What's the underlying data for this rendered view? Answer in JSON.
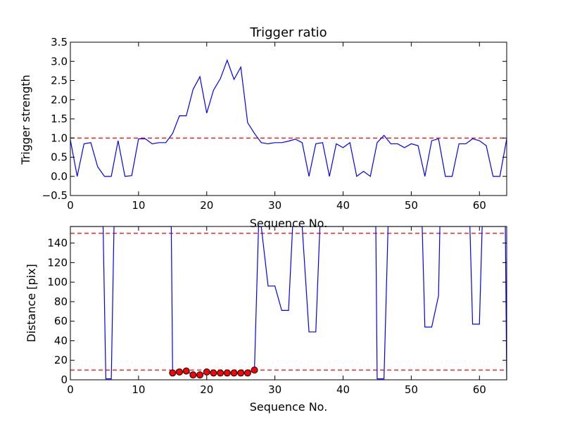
{
  "chart_data": [
    {
      "type": "line",
      "title": "Trigger ratio",
      "xlabel": "Sequence No.",
      "ylabel": "Trigger strength",
      "xlim": [
        0,
        64
      ],
      "ylim": [
        -0.5,
        3.5
      ],
      "xticks": [
        0,
        10,
        20,
        30,
        40,
        50,
        60
      ],
      "yticks": [
        -0.5,
        0.0,
        0.5,
        1.0,
        1.5,
        2.0,
        2.5,
        3.0,
        3.5
      ],
      "tick_labels_x": [
        "0",
        "10",
        "20",
        "30",
        "40",
        "50",
        "60"
      ],
      "tick_labels_y": [
        "−0.5",
        "0.0",
        "0.5",
        "1.0",
        "1.5",
        "2.0",
        "2.5",
        "3.0",
        "3.5"
      ],
      "grid": false,
      "series": [
        {
          "color": "#0000ff",
          "x": [
            0,
            1,
            2,
            3,
            4,
            5,
            6,
            7,
            8,
            9,
            10,
            11,
            12,
            13,
            14,
            15,
            16,
            17,
            18,
            19,
            20,
            21,
            22,
            23,
            24,
            25,
            26,
            27,
            28,
            29,
            30,
            31,
            32,
            33,
            34,
            35,
            36,
            37,
            38,
            39,
            40,
            41,
            42,
            43,
            44,
            45,
            46,
            47,
            48,
            49,
            50,
            51,
            52,
            53,
            54,
            55,
            56,
            57,
            58,
            59,
            60,
            61,
            62,
            63,
            64
          ],
          "y": [
            0.95,
            0.0,
            0.85,
            0.88,
            0.25,
            0.0,
            0.0,
            0.93,
            0.0,
            0.02,
            0.98,
            0.98,
            0.85,
            0.88,
            0.88,
            1.12,
            1.58,
            1.58,
            2.27,
            2.6,
            1.65,
            2.25,
            2.55,
            3.03,
            2.53,
            2.85,
            1.4,
            1.12,
            0.88,
            0.85,
            0.88,
            0.88,
            0.92,
            0.97,
            0.88,
            0.0,
            0.85,
            0.88,
            0.0,
            0.85,
            0.75,
            0.88,
            0.0,
            0.13,
            0.0,
            0.88,
            1.07,
            0.85,
            0.85,
            0.75,
            0.85,
            0.8,
            0.0,
            0.93,
            0.98,
            0.0,
            0.0,
            0.85,
            0.85,
            0.98,
            0.93,
            0.8,
            0.0,
            0.0,
            0.98
          ]
        }
      ],
      "reference_lines": [
        {
          "axis": "y",
          "value": 1.0,
          "color": "#ff0000",
          "style": "dashed"
        }
      ]
    },
    {
      "type": "line",
      "title": "",
      "xlabel": "Sequence No.",
      "ylabel": "Distance [pix]",
      "xlim": [
        0,
        64
      ],
      "ylim": [
        0,
        157
      ],
      "xticks": [
        0,
        10,
        20,
        30,
        40,
        50,
        60
      ],
      "yticks": [
        0,
        20,
        40,
        60,
        80,
        100,
        120,
        140
      ],
      "tick_labels_x": [
        "0",
        "10",
        "20",
        "30",
        "40",
        "50",
        "60"
      ],
      "tick_labels_y": [
        "0",
        "20",
        "40",
        "60",
        "80",
        "100",
        "120",
        "140"
      ],
      "grid": false,
      "series": [
        {
          "color": "#0000ff",
          "x": [
            0,
            4.8,
            5.2,
            6,
            6.4,
            14.8,
            15,
            16,
            17,
            18,
            19,
            20,
            21,
            22,
            23,
            24,
            25,
            26,
            27,
            27.6,
            28,
            29,
            30,
            31,
            32,
            32.6,
            34,
            35,
            36,
            36.6,
            44.8,
            45,
            46,
            46.6,
            51.6,
            52,
            53,
            54,
            54.2,
            58.6,
            59,
            60,
            60.4,
            63.8,
            64
          ],
          "y": [
            157,
            157,
            1,
            1,
            157,
            157,
            7,
            8,
            9,
            5,
            5,
            8,
            7,
            7,
            7,
            7,
            7,
            7,
            10,
            157,
            157,
            96,
            96,
            71,
            71,
            157,
            157,
            49,
            49,
            157,
            157,
            1,
            1,
            157,
            157,
            54,
            54,
            86,
            157,
            157,
            57,
            57,
            157,
            157,
            0
          ]
        },
        {
          "name": "",
          "color": "#ff0000",
          "marker": "circle",
          "x": [
            15,
            16,
            17,
            18,
            19,
            20,
            21,
            22,
            23,
            24,
            25,
            26,
            27
          ],
          "y": [
            7,
            8,
            9,
            5,
            5,
            8,
            7,
            7,
            7,
            7,
            7,
            7,
            10
          ]
        }
      ],
      "reference_lines": [
        {
          "axis": "y",
          "value": 150,
          "color": "#ff0000",
          "style": "dashed"
        },
        {
          "axis": "y",
          "value": 10,
          "color": "#ff0000",
          "style": "dashed"
        }
      ]
    }
  ]
}
